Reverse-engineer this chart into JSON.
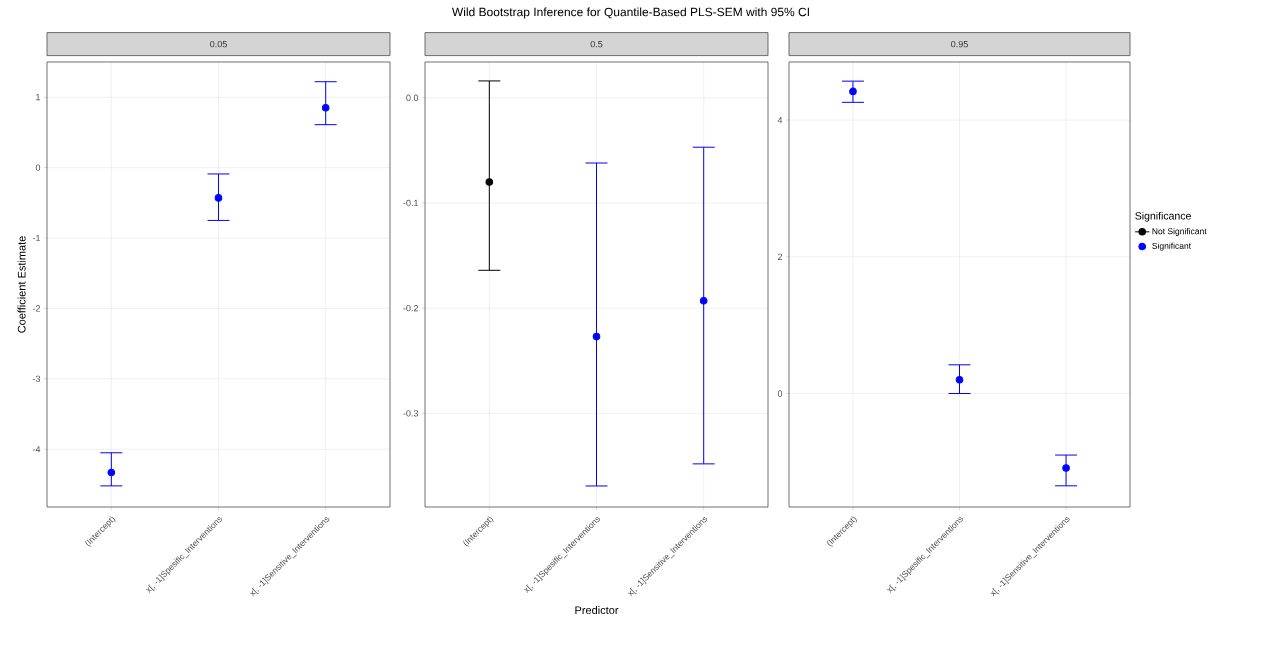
{
  "chart_data": [
    {
      "type": "scatter",
      "title": "0.05",
      "ylabel": "Coefficient Estimate",
      "categories": [
        "(Intercept)",
        "x[, -1]Spesific_Interventions",
        "x[, -1]Sensitive_Interventions"
      ],
      "ylim": [
        -4.82,
        1.5
      ],
      "yticks": [
        -4,
        -3,
        -2,
        -1,
        0,
        1
      ],
      "grid": true,
      "marker": "circle",
      "legend": false,
      "series": [
        {
          "color": "#0000ff",
          "values": [
            -4.33,
            -0.43,
            0.85
          ],
          "errors": [
            [
              -4.52,
              -4.05
            ],
            [
              -0.75,
              -0.09
            ],
            [
              0.61,
              1.22
            ]
          ]
        }
      ]
    },
    {
      "type": "scatter",
      "title": "0.5",
      "xlabel": "Predictor",
      "annotations": [
        "Wild Bootstrap Inference for Quantile-Based PLS-SEM with 95% CI"
      ],
      "categories": [
        "(Intercept)",
        "x[, -1]Spesific_Interventions",
        "x[, -1]Sensitive_Interventions"
      ],
      "ylim": [
        -0.389,
        0.034
      ],
      "yticks": [
        {
          "value": -0.3,
          "label": "-0.3"
        },
        {
          "value": -0.2,
          "label": "-0.2"
        },
        {
          "value": -0.1,
          "label": "-0.1"
        },
        {
          "value": 0,
          "label": "0.0"
        }
      ],
      "grid": true,
      "marker": "circle",
      "legend": false,
      "series": [
        {
          "color": "#000000",
          "values": [
            -0.08,
            null,
            null
          ],
          "errors": [
            [
              -0.164,
              0.016
            ],
            null,
            null
          ]
        },
        {
          "color": "#0000ff",
          "values": [
            null,
            -0.227,
            -0.193
          ],
          "errors": [
            null,
            [
              -0.369,
              -0.062
            ],
            [
              -0.348,
              -0.047
            ]
          ]
        }
      ]
    },
    {
      "type": "scatter",
      "title": "0.95",
      "legend_title": "Significance",
      "categories": [
        "(Intercept)",
        "x[, -1]Spesific_Interventions",
        "x[, -1]Sensitive_Interventions"
      ],
      "ylim": [
        -1.66,
        4.85
      ],
      "yticks": [
        0,
        2,
        4
      ],
      "grid": true,
      "marker": "circle",
      "legend": "right",
      "series": [
        {
          "name": "Not Significant",
          "color": "#000000",
          "values": [
            null,
            null,
            null
          ]
        },
        {
          "name": "Significant",
          "color": "#0000ff",
          "values": [
            4.42,
            0.2,
            -1.09
          ],
          "errors": [
            [
              4.26,
              4.57
            ],
            [
              0.0,
              0.42
            ],
            [
              -1.35,
              -0.9
            ]
          ]
        }
      ]
    }
  ]
}
